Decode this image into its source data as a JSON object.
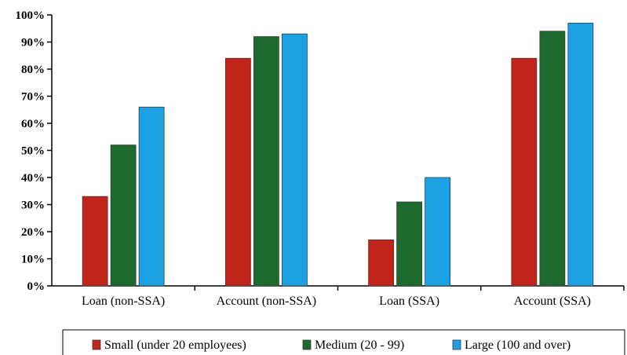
{
  "chart_data": {
    "type": "bar",
    "categories": [
      "Loan (non-SSA)",
      "Account (non-SSA)",
      "Loan (SSA)",
      "Account (SSA)"
    ],
    "series": [
      {
        "name": "Small (under 20 employees)",
        "color": "#c0241b",
        "values": [
          33,
          84,
          17,
          84
        ]
      },
      {
        "name": "Medium (20 - 99)",
        "color": "#1e6a2e",
        "values": [
          52,
          92,
          31,
          94
        ]
      },
      {
        "name": "Large (100 and over)",
        "color": "#1ea1e2",
        "values": [
          66,
          93,
          40,
          97
        ]
      }
    ],
    "yticks": [
      "0%",
      "10%",
      "20%",
      "30%",
      "40%",
      "50%",
      "60%",
      "70%",
      "80%",
      "90%",
      "100%"
    ],
    "ylim": [
      0,
      100
    ],
    "title": "",
    "xlabel": "",
    "ylabel": "",
    "grid": false,
    "legend_position": "bottom"
  }
}
